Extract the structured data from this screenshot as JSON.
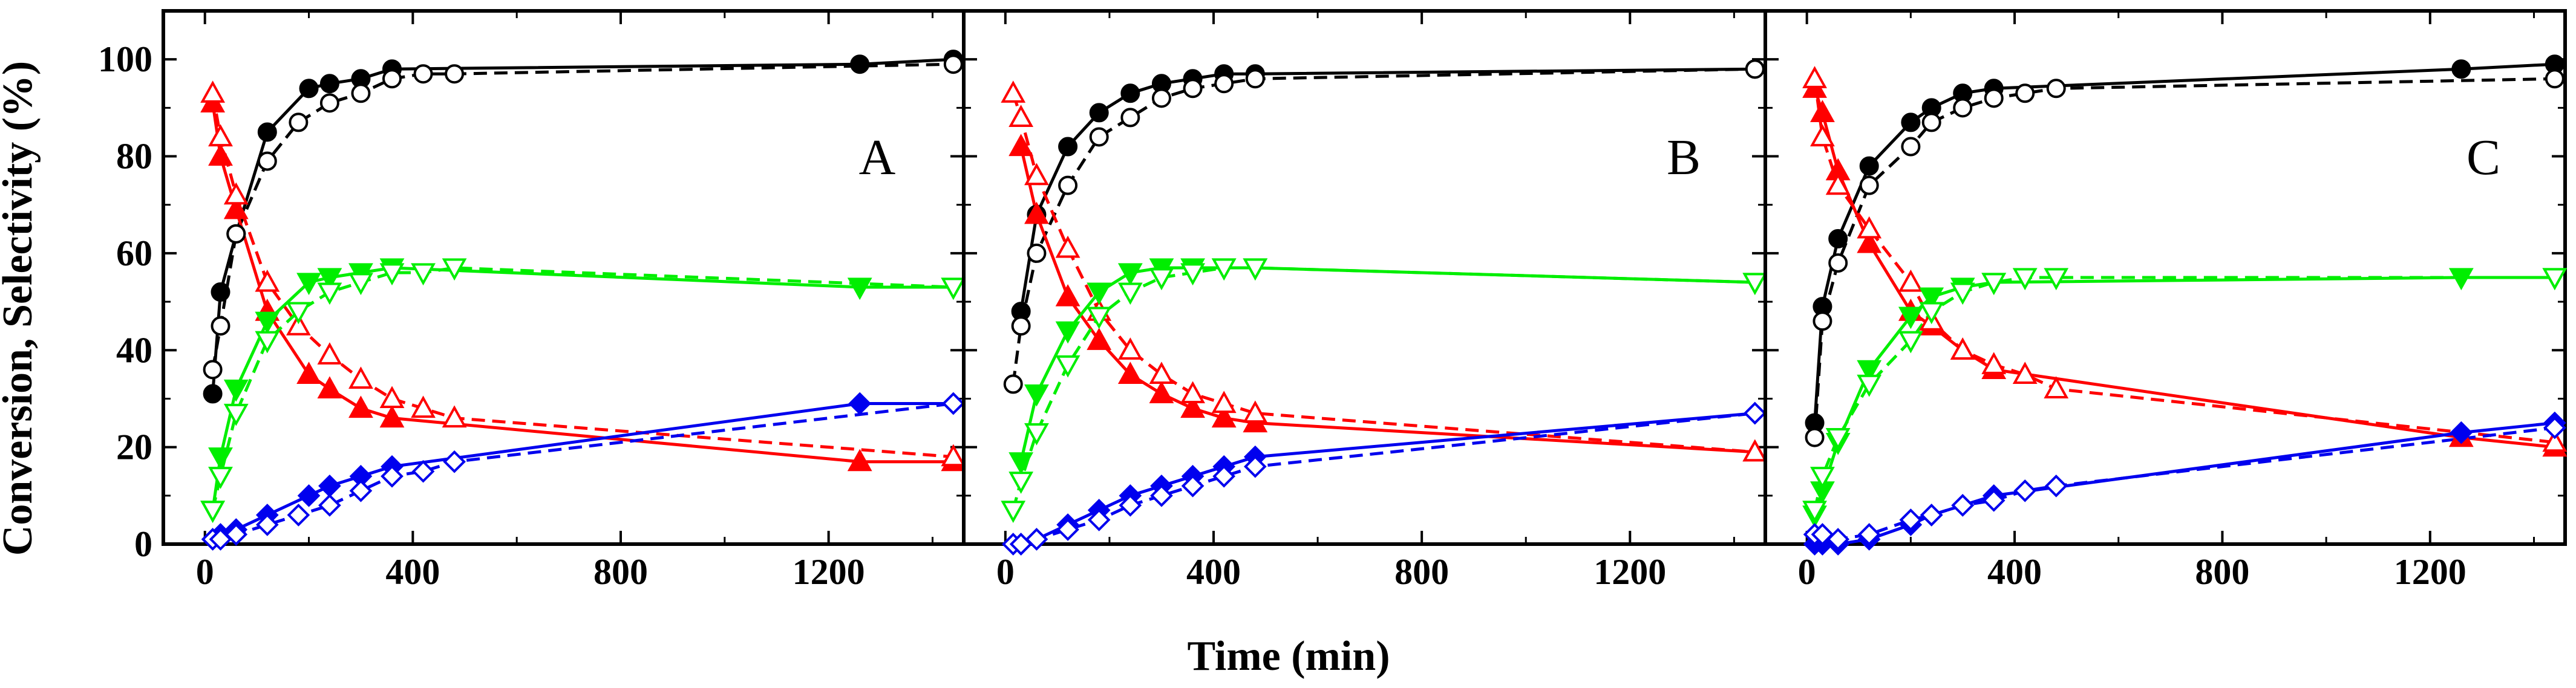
{
  "figure": {
    "ylabel": "Conversion, Selectivity (%)",
    "xlabel": "Time (min)"
  },
  "colors": {
    "black": "#000000",
    "red": "#ff0000",
    "green": "#00ee00",
    "blue": "#0000ee"
  },
  "chart_data": [
    {
      "type": "line",
      "panel_label": "A",
      "xlim": [
        -80,
        1460
      ],
      "ylim": [
        0,
        110
      ],
      "xticks": [
        0,
        400,
        800,
        1200
      ],
      "xtick_labels": [
        "0",
        "400",
        "800",
        "1200"
      ],
      "yticks": [
        0,
        20,
        40,
        60,
        80,
        100
      ],
      "ytick_labels": [
        "0",
        "20",
        "40",
        "60",
        "80",
        "100"
      ],
      "series": [
        {
          "name": "conversion (filled)",
          "color": "black",
          "marker": "circle",
          "filled": true,
          "dashed": false,
          "x": [
            15,
            30,
            60,
            120,
            200,
            240,
            300,
            360,
            1260,
            1440
          ],
          "y": [
            31,
            52,
            64,
            85,
            94,
            95,
            96,
            98,
            99,
            100
          ]
        },
        {
          "name": "conversion (open)",
          "color": "black",
          "marker": "circle",
          "filled": false,
          "dashed": true,
          "x": [
            15,
            30,
            60,
            120,
            180,
            240,
            300,
            360,
            420,
            480,
            1440
          ],
          "y": [
            36,
            45,
            64,
            79,
            87,
            91,
            93,
            96,
            97,
            97,
            99
          ]
        },
        {
          "name": "selectivity red (filled)",
          "color": "red",
          "marker": "triangle-up",
          "filled": true,
          "dashed": false,
          "x": [
            15,
            30,
            60,
            120,
            200,
            240,
            300,
            360,
            1260,
            1440
          ],
          "y": [
            91,
            80,
            69,
            48,
            35,
            32,
            28,
            26,
            17,
            17
          ]
        },
        {
          "name": "selectivity red (open)",
          "color": "red",
          "marker": "triangle-up",
          "filled": false,
          "dashed": true,
          "x": [
            15,
            30,
            60,
            120,
            180,
            240,
            300,
            360,
            420,
            480,
            1440
          ],
          "y": [
            93,
            84,
            72,
            54,
            45,
            39,
            34,
            30,
            28,
            26,
            18
          ]
        },
        {
          "name": "selectivity green (filled)",
          "color": "green",
          "marker": "triangle-down",
          "filled": true,
          "dashed": false,
          "x": [
            15,
            30,
            60,
            120,
            200,
            240,
            300,
            360,
            1260,
            1440
          ],
          "y": [
            7,
            18,
            32,
            46,
            54,
            55,
            56,
            57,
            53,
            53
          ]
        },
        {
          "name": "selectivity green (open)",
          "color": "green",
          "marker": "triangle-down",
          "filled": false,
          "dashed": true,
          "x": [
            15,
            30,
            60,
            120,
            180,
            240,
            300,
            360,
            420,
            480,
            1440
          ],
          "y": [
            7,
            14,
            27,
            42,
            48,
            52,
            54,
            56,
            56,
            57,
            53
          ]
        },
        {
          "name": "selectivity blue (filled)",
          "color": "blue",
          "marker": "diamond",
          "filled": true,
          "dashed": false,
          "x": [
            15,
            30,
            60,
            120,
            200,
            240,
            300,
            360,
            1260,
            1440
          ],
          "y": [
            1,
            2,
            3,
            6,
            10,
            12,
            14,
            16,
            29,
            29
          ]
        },
        {
          "name": "selectivity blue (open)",
          "color": "blue",
          "marker": "diamond",
          "filled": false,
          "dashed": true,
          "x": [
            15,
            30,
            60,
            120,
            180,
            240,
            300,
            360,
            420,
            480,
            1440
          ],
          "y": [
            1,
            1,
            2,
            4,
            6,
            8,
            11,
            14,
            15,
            17,
            29
          ]
        }
      ]
    },
    {
      "type": "line",
      "panel_label": "B",
      "xlim": [
        -80,
        1460
      ],
      "ylim": [
        0,
        110
      ],
      "xticks": [
        0,
        400,
        800,
        1200
      ],
      "xtick_labels": [
        "0",
        "400",
        "800",
        "1200"
      ],
      "yticks": [
        0,
        20,
        40,
        60,
        80,
        100
      ],
      "ytick_labels": [
        "0",
        "20",
        "40",
        "60",
        "80",
        "100"
      ],
      "series": [
        {
          "name": "conversion (filled)",
          "color": "black",
          "marker": "circle",
          "filled": true,
          "dashed": false,
          "x": [
            30,
            60,
            120,
            180,
            240,
            300,
            360,
            420,
            480,
            1440
          ],
          "y": [
            48,
            68,
            82,
            89,
            93,
            95,
            96,
            97,
            97,
            98
          ]
        },
        {
          "name": "conversion (open)",
          "color": "black",
          "marker": "circle",
          "filled": false,
          "dashed": true,
          "x": [
            15,
            30,
            60,
            120,
            180,
            240,
            300,
            360,
            420,
            480,
            1440
          ],
          "y": [
            33,
            45,
            60,
            74,
            84,
            88,
            92,
            94,
            95,
            96,
            98
          ]
        },
        {
          "name": "selectivity red (filled)",
          "color": "red",
          "marker": "triangle-up",
          "filled": true,
          "dashed": false,
          "x": [
            30,
            60,
            120,
            180,
            240,
            300,
            360,
            420,
            480,
            1440
          ],
          "y": [
            82,
            68,
            51,
            42,
            35,
            31,
            28,
            26,
            25,
            19
          ]
        },
        {
          "name": "selectivity red (open)",
          "color": "red",
          "marker": "triangle-up",
          "filled": false,
          "dashed": true,
          "x": [
            15,
            30,
            60,
            120,
            180,
            240,
            300,
            360,
            420,
            480,
            1440
          ],
          "y": [
            93,
            88,
            76,
            61,
            48,
            40,
            35,
            31,
            29,
            27,
            19
          ]
        },
        {
          "name": "selectivity green (filled)",
          "color": "green",
          "marker": "triangle-down",
          "filled": true,
          "dashed": false,
          "x": [
            30,
            60,
            120,
            180,
            240,
            300,
            360,
            420,
            480,
            1440
          ],
          "y": [
            17,
            31,
            44,
            52,
            56,
            57,
            57,
            57,
            57,
            54
          ]
        },
        {
          "name": "selectivity green (open)",
          "color": "green",
          "marker": "triangle-down",
          "filled": false,
          "dashed": true,
          "x": [
            15,
            30,
            60,
            120,
            180,
            240,
            300,
            360,
            420,
            480,
            1440
          ],
          "y": [
            7,
            13,
            23,
            37,
            47,
            52,
            55,
            56,
            57,
            57,
            54
          ]
        },
        {
          "name": "selectivity blue (filled)",
          "color": "blue",
          "marker": "diamond",
          "filled": true,
          "dashed": false,
          "x": [
            30,
            60,
            120,
            180,
            240,
            300,
            360,
            420,
            480,
            1440
          ],
          "y": [
            0,
            1,
            4,
            7,
            10,
            12,
            14,
            16,
            18,
            27
          ]
        },
        {
          "name": "selectivity blue (open)",
          "color": "blue",
          "marker": "diamond",
          "filled": false,
          "dashed": true,
          "x": [
            15,
            30,
            60,
            120,
            180,
            240,
            300,
            360,
            420,
            480,
            1440
          ],
          "y": [
            0,
            0,
            1,
            3,
            5,
            8,
            10,
            12,
            14,
            16,
            27
          ]
        }
      ]
    },
    {
      "type": "line",
      "panel_label": "C",
      "xlim": [
        -80,
        1460
      ],
      "ylim": [
        0,
        110
      ],
      "xticks": [
        0,
        400,
        800,
        1200
      ],
      "xtick_labels": [
        "0",
        "400",
        "800",
        "1200"
      ],
      "yticks": [
        0,
        20,
        40,
        60,
        80,
        100
      ],
      "ytick_labels": [
        "0",
        "20",
        "40",
        "60",
        "80",
        "100"
      ],
      "series": [
        {
          "name": "conversion (filled)",
          "color": "black",
          "marker": "circle",
          "filled": true,
          "dashed": false,
          "x": [
            15,
            30,
            60,
            120,
            200,
            240,
            300,
            360,
            1260,
            1440
          ],
          "y": [
            25,
            49,
            63,
            78,
            87,
            90,
            93,
            94,
            98,
            99
          ]
        },
        {
          "name": "conversion (open)",
          "color": "black",
          "marker": "circle",
          "filled": false,
          "dashed": true,
          "x": [
            15,
            30,
            60,
            120,
            200,
            240,
            300,
            360,
            420,
            480,
            1440
          ],
          "y": [
            22,
            46,
            58,
            74,
            82,
            87,
            90,
            92,
            93,
            94,
            96
          ]
        },
        {
          "name": "selectivity red (filled)",
          "color": "red",
          "marker": "triangle-up",
          "filled": true,
          "dashed": false,
          "x": [
            15,
            30,
            60,
            120,
            200,
            240,
            300,
            360,
            1260,
            1440
          ],
          "y": [
            94,
            89,
            77,
            62,
            48,
            45,
            40,
            36,
            22,
            20
          ]
        },
        {
          "name": "selectivity red (open)",
          "color": "red",
          "marker": "triangle-up",
          "filled": false,
          "dashed": true,
          "x": [
            15,
            30,
            60,
            120,
            200,
            240,
            300,
            360,
            420,
            480,
            1440
          ],
          "y": [
            96,
            84,
            74,
            65,
            54,
            46,
            40,
            37,
            35,
            32,
            21
          ]
        },
        {
          "name": "selectivity green (filled)",
          "color": "green",
          "marker": "triangle-down",
          "filled": true,
          "dashed": false,
          "x": [
            15,
            30,
            60,
            120,
            200,
            240,
            300,
            360,
            1260,
            1440
          ],
          "y": [
            6,
            11,
            21,
            36,
            47,
            51,
            53,
            54,
            55,
            55
          ]
        },
        {
          "name": "selectivity green (open)",
          "color": "green",
          "marker": "triangle-down",
          "filled": false,
          "dashed": true,
          "x": [
            15,
            30,
            60,
            120,
            200,
            240,
            300,
            360,
            420,
            480,
            1440
          ],
          "y": [
            7,
            14,
            22,
            33,
            42,
            48,
            52,
            54,
            55,
            55,
            55
          ]
        },
        {
          "name": "selectivity blue (filled)",
          "color": "blue",
          "marker": "diamond",
          "filled": true,
          "dashed": false,
          "x": [
            15,
            30,
            60,
            120,
            200,
            240,
            300,
            360,
            1260,
            1440
          ],
          "y": [
            0,
            0,
            0,
            1,
            4,
            6,
            8,
            10,
            23,
            25
          ]
        },
        {
          "name": "selectivity blue (open)",
          "color": "blue",
          "marker": "diamond",
          "filled": false,
          "dashed": true,
          "x": [
            15,
            30,
            60,
            120,
            200,
            240,
            300,
            360,
            420,
            480,
            1440
          ],
          "y": [
            2,
            2,
            1,
            2,
            5,
            6,
            8,
            9,
            11,
            12,
            24
          ]
        }
      ]
    }
  ]
}
